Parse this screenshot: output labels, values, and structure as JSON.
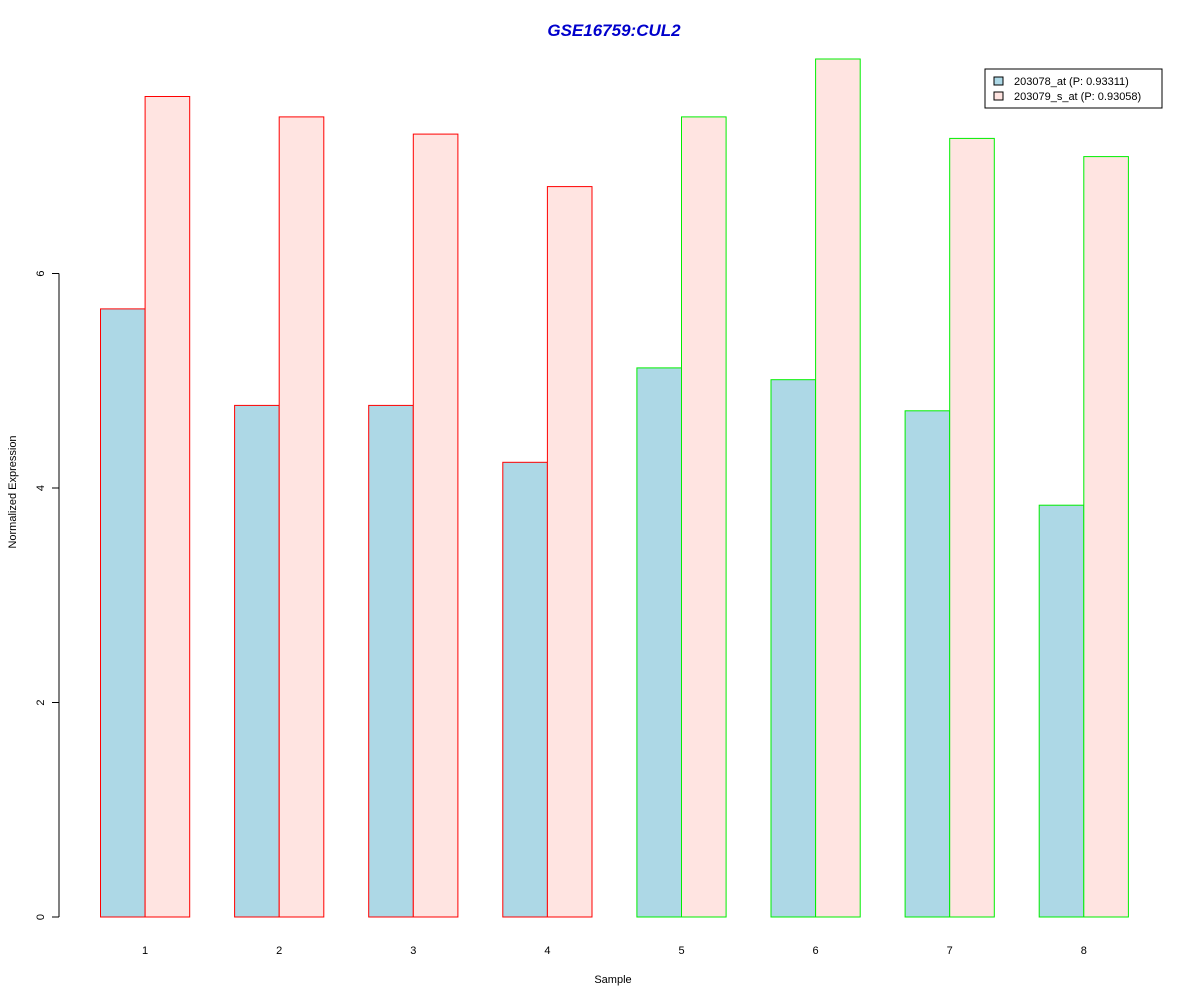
{
  "chart_data": {
    "type": "bar",
    "title": "GSE16759:CUL2",
    "xlabel": "Sample",
    "ylabel": "Normalized Expression",
    "categories": [
      "1",
      "2",
      "3",
      "4",
      "5",
      "6",
      "7",
      "8"
    ],
    "series": [
      {
        "name": "203078_at (P: 0.93311)",
        "fill": "#add8e6",
        "values": [
          5.67,
          4.77,
          4.77,
          4.24,
          5.12,
          5.01,
          4.72,
          3.84
        ]
      },
      {
        "name": "203079_s_at (P: 0.93058)",
        "fill": "#ffe4e1",
        "values": [
          7.65,
          7.46,
          7.3,
          6.81,
          7.46,
          8.0,
          7.26,
          7.09
        ]
      }
    ],
    "group_outline_colors": [
      "#ff0000",
      "#ff0000",
      "#ff0000",
      "#ff0000",
      "#00ee00",
      "#00ee00",
      "#00ee00",
      "#00ee00"
    ],
    "yticks": [
      0,
      2,
      4,
      6
    ],
    "ylim": [
      0,
      8.0
    ],
    "grid": false,
    "legend_position": "top-right",
    "title_color": "#0000cc"
  }
}
